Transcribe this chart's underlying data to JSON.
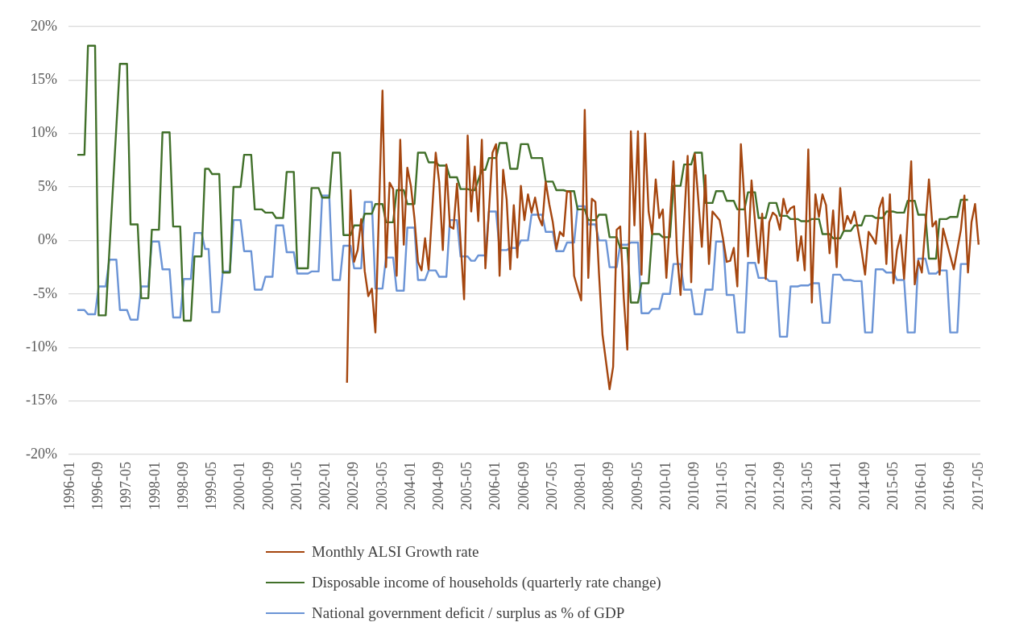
{
  "chart_data": {
    "type": "line",
    "marker": "none",
    "grid": "y",
    "legend": "bottom",
    "ylim": [
      -20,
      20
    ],
    "yticks": [
      {
        "value": -20,
        "label": "-20%"
      },
      {
        "value": -15,
        "label": "-15%"
      },
      {
        "value": -10,
        "label": "-10%"
      },
      {
        "value": -5,
        "label": "-5%"
      },
      {
        "value": 0,
        "label": "0%"
      },
      {
        "value": 5,
        "label": "5%"
      },
      {
        "value": 10,
        "label": "10%"
      },
      {
        "value": 15,
        "label": "15%"
      },
      {
        "value": 20,
        "label": "20%"
      }
    ],
    "xlim": [
      "1996-01",
      "2017-05"
    ],
    "xticks": [
      "1996-01",
      "1996-09",
      "1997-05",
      "1998-01",
      "1998-09",
      "1999-05",
      "2000-01",
      "2000-09",
      "2001-05",
      "2002-01",
      "2002-09",
      "2003-05",
      "2004-01",
      "2004-09",
      "2005-05",
      "2006-01",
      "2006-09",
      "2007-05",
      "2008-01",
      "2008-09",
      "2009-05",
      "2010-01",
      "2010-09",
      "2011-05",
      "2012-01",
      "2012-09",
      "2013-05",
      "2014-01",
      "2014-09",
      "2015-05",
      "2016-01",
      "2016-09",
      "2017-05"
    ],
    "series": [
      {
        "name": "Monthly ALSI Growth rate",
        "color": "#a5460f",
        "x": [
          "2002-07",
          "2002-08",
          "2002-09",
          "2002-10",
          "2002-11",
          "2002-12",
          "2003-01",
          "2003-02",
          "2003-03",
          "2003-05",
          "2003-06",
          "2003-07",
          "2003-08",
          "2003-09",
          "2003-10",
          "2003-11",
          "2003-12",
          "2004-01",
          "2004-02",
          "2004-03",
          "2004-04",
          "2004-05",
          "2004-06",
          "2004-08",
          "2004-09",
          "2004-10",
          "2004-11",
          "2004-12",
          "2005-01",
          "2005-02",
          "2005-04",
          "2005-05",
          "2005-06",
          "2005-07",
          "2005-08",
          "2005-09",
          "2005-10",
          "2005-12",
          "2006-01",
          "2006-02",
          "2006-03",
          "2006-04",
          "2006-05",
          "2006-06",
          "2006-07",
          "2006-08",
          "2006-09",
          "2006-10",
          "2006-11",
          "2006-12",
          "2007-01",
          "2007-02",
          "2007-03",
          "2007-04",
          "2007-05",
          "2007-06",
          "2007-07",
          "2007-08",
          "2007-09",
          "2007-10",
          "2007-11",
          "2007-12",
          "2008-01",
          "2008-02",
          "2008-03",
          "2008-04",
          "2008-05",
          "2008-06",
          "2008-07",
          "2008-09",
          "2008-10",
          "2008-11",
          "2008-12",
          "2009-01",
          "2009-02",
          "2009-03",
          "2009-04",
          "2009-05",
          "2009-06",
          "2009-07",
          "2009-08",
          "2009-09",
          "2009-10",
          "2009-11",
          "2009-12",
          "2010-01",
          "2010-03",
          "2010-04",
          "2010-05",
          "2010-06",
          "2010-07",
          "2010-08",
          "2010-09",
          "2010-10",
          "2010-11",
          "2010-12",
          "2011-01",
          "2011-02",
          "2011-04",
          "2011-05",
          "2011-06",
          "2011-07",
          "2011-08",
          "2011-09",
          "2011-10",
          "2011-11",
          "2011-12",
          "2012-01",
          "2012-02",
          "2012-03",
          "2012-04",
          "2012-05",
          "2012-06",
          "2012-07",
          "2012-08",
          "2012-09",
          "2012-10",
          "2012-11",
          "2012-12",
          "2013-01",
          "2013-02",
          "2013-03",
          "2013-04",
          "2013-05",
          "2013-06",
          "2013-07",
          "2013-08",
          "2013-09",
          "2013-10",
          "2013-11",
          "2013-12",
          "2014-01",
          "2014-02",
          "2014-03",
          "2014-04",
          "2014-05",
          "2014-06",
          "2014-07",
          "2014-08",
          "2014-09",
          "2014-10",
          "2014-11",
          "2014-12",
          "2015-01",
          "2015-02",
          "2015-03",
          "2015-04",
          "2015-05",
          "2015-06",
          "2015-07",
          "2015-08",
          "2015-10",
          "2015-11",
          "2015-12",
          "2016-01",
          "2016-03",
          "2016-04",
          "2016-05",
          "2016-06",
          "2016-07",
          "2016-10",
          "2016-12",
          "2017-01",
          "2017-02",
          "2017-03",
          "2017-04",
          "2017-05"
        ],
        "values": [
          -13.3,
          4.7,
          -2.0,
          -0.9,
          2.0,
          -2.9,
          -5.2,
          -4.5,
          -8.6,
          14.0,
          -2.5,
          5.4,
          4.8,
          -3.3,
          9.4,
          -0.4,
          6.8,
          5.1,
          2.1,
          -2.0,
          -2.8,
          0.2,
          -2.7,
          8.2,
          5.4,
          -0.9,
          7.1,
          1.3,
          1.1,
          5.3,
          -5.5,
          9.8,
          2.7,
          6.9,
          1.8,
          9.4,
          -2.6,
          8.2,
          9.0,
          -3.3,
          6.6,
          3.8,
          -2.7,
          3.3,
          -1.6,
          5.1,
          1.9,
          4.3,
          2.6,
          4.0,
          2.2,
          1.4,
          5.5,
          3.4,
          1.7,
          -0.8,
          0.8,
          0.4,
          4.6,
          4.5,
          -3.3,
          -4.5,
          -5.6,
          12.2,
          -3.5,
          3.9,
          3.6,
          -3.0,
          -8.8,
          -13.9,
          -11.8,
          1.0,
          1.3,
          -5.4,
          -10.2,
          10.2,
          1.4,
          10.2,
          -3.2,
          10.0,
          2.7,
          0.6,
          5.7,
          2.1,
          2.9,
          -3.5,
          7.4,
          -1.2,
          -5.1,
          1.7,
          7.9,
          -3.9,
          8.1,
          3.8,
          -0.6,
          6.1,
          -2.2,
          2.7,
          1.9,
          0.1,
          -2.0,
          -1.9,
          -0.7,
          -4.3,
          9.0,
          3.8,
          -1.5,
          5.6,
          1.7,
          -2.1,
          2.5,
          -3.6,
          1.7,
          2.6,
          2.3,
          1.0,
          3.9,
          2.5,
          3.0,
          3.2,
          -1.9,
          0.4,
          -2.8,
          8.5,
          -5.8,
          4.3,
          2.2,
          4.3,
          3.3,
          -1.2,
          2.8,
          -2.5,
          4.9,
          1.0,
          2.3,
          1.6,
          2.7,
          1.0,
          -0.9,
          -3.2,
          0.8,
          0.3,
          -0.3,
          3.0,
          4.0,
          -2.2,
          4.3,
          -4.0,
          -0.9,
          0.5,
          -3.6,
          7.4,
          -4.1,
          -1.9,
          -3.0,
          5.7,
          1.3,
          1.8,
          -3.2,
          1.1,
          -2.7,
          1.0,
          4.2,
          -3.0,
          1.7,
          3.4,
          -0.4
        ]
      },
      {
        "name": "Disposable income of households (quarterly rate change)",
        "color": "#41702a",
        "x": [
          "1996-03",
          "1996-05",
          "1996-06",
          "1996-08",
          "1996-09",
          "1996-11",
          "1997-03",
          "1997-05",
          "1997-06",
          "1997-08",
          "1997-09",
          "1997-11",
          "1997-12",
          "1998-02",
          "1998-03",
          "1998-05",
          "1998-06",
          "1998-08",
          "1998-09",
          "1998-11",
          "1998-12",
          "1999-02",
          "1999-03",
          "1999-04",
          "1999-05",
          "1999-07",
          "1999-08",
          "1999-10",
          "1999-11",
          "2000-01",
          "2000-02",
          "2000-04",
          "2000-05",
          "2000-07",
          "2000-08",
          "2000-10",
          "2000-11",
          "2001-01",
          "2001-02",
          "2001-04",
          "2001-05",
          "2001-08",
          "2001-09",
          "2001-11",
          "2001-12",
          "2002-02",
          "2002-03",
          "2002-05",
          "2002-06",
          "2002-08",
          "2002-09",
          "2002-11",
          "2002-12",
          "2003-02",
          "2003-03",
          "2003-05",
          "2003-06",
          "2003-08",
          "2003-09",
          "2003-11",
          "2003-12",
          "2004-02",
          "2004-03",
          "2004-05",
          "2004-06",
          "2004-08",
          "2004-09",
          "2004-11",
          "2004-12",
          "2005-02",
          "2005-03",
          "2005-05",
          "2005-06",
          "2005-07",
          "2005-09",
          "2005-10",
          "2005-11",
          "2006-01",
          "2006-02",
          "2006-04",
          "2006-05",
          "2006-07",
          "2006-08",
          "2006-10",
          "2006-11",
          "2007-02",
          "2007-03",
          "2007-05",
          "2007-06",
          "2007-08",
          "2007-09",
          "2007-11",
          "2007-12",
          "2008-02",
          "2008-03",
          "2008-05",
          "2008-06",
          "2008-08",
          "2008-09",
          "2008-11",
          "2008-12",
          "2009-02",
          "2009-03",
          "2009-05",
          "2009-06",
          "2009-08",
          "2009-09",
          "2009-11",
          "2009-12",
          "2010-02",
          "2010-03",
          "2010-05",
          "2010-06",
          "2010-08",
          "2010-09",
          "2010-11",
          "2010-12",
          "2011-02",
          "2011-03",
          "2011-05",
          "2011-06",
          "2011-08",
          "2011-09",
          "2011-11",
          "2011-12",
          "2012-02",
          "2012-03",
          "2012-05",
          "2012-06",
          "2012-08",
          "2012-09",
          "2012-11",
          "2012-12",
          "2013-02",
          "2013-03",
          "2013-05",
          "2013-06",
          "2013-08",
          "2013-09",
          "2013-11",
          "2013-12",
          "2014-02",
          "2014-03",
          "2014-05",
          "2014-06",
          "2014-08",
          "2014-09",
          "2014-11",
          "2014-12",
          "2015-02",
          "2015-03",
          "2015-05",
          "2015-06",
          "2015-08",
          "2015-09",
          "2015-11",
          "2015-12",
          "2016-02",
          "2016-03",
          "2016-05",
          "2016-06",
          "2016-08",
          "2016-09",
          "2016-11",
          "2016-12",
          "2017-02"
        ],
        "values": [
          8.0,
          8.0,
          18.2,
          18.2,
          -7.0,
          -7.0,
          16.5,
          16.5,
          1.5,
          1.5,
          -5.4,
          -5.4,
          1.0,
          1.0,
          10.1,
          10.1,
          1.3,
          1.3,
          -7.5,
          -7.5,
          -1.5,
          -1.5,
          6.7,
          6.7,
          6.2,
          6.2,
          -3.0,
          -3.0,
          5.0,
          5.0,
          8.0,
          8.0,
          2.9,
          2.9,
          2.6,
          2.6,
          2.1,
          2.1,
          6.4,
          6.4,
          -2.6,
          -2.6,
          4.9,
          4.9,
          4.0,
          4.0,
          8.2,
          8.2,
          0.5,
          0.5,
          1.4,
          1.4,
          2.5,
          2.5,
          3.4,
          3.4,
          1.7,
          1.7,
          4.7,
          4.7,
          3.4,
          3.4,
          8.2,
          8.2,
          7.3,
          7.3,
          7.0,
          7.0,
          5.9,
          5.9,
          4.8,
          4.8,
          4.7,
          4.7,
          6.6,
          6.6,
          7.7,
          7.7,
          9.1,
          9.1,
          6.7,
          6.7,
          9.0,
          9.0,
          7.7,
          7.7,
          5.5,
          5.5,
          4.7,
          4.7,
          4.6,
          4.6,
          2.9,
          2.9,
          1.9,
          1.9,
          2.4,
          2.4,
          0.3,
          0.3,
          -0.7,
          -0.7,
          -5.8,
          -5.8,
          -4.0,
          -4.0,
          0.6,
          0.6,
          0.3,
          0.3,
          5.1,
          5.1,
          7.1,
          7.1,
          8.2,
          8.2,
          3.5,
          3.5,
          4.6,
          4.6,
          3.7,
          3.7,
          2.9,
          2.9,
          4.5,
          4.5,
          2.1,
          2.1,
          3.5,
          3.5,
          2.3,
          2.3,
          2.0,
          2.0,
          1.8,
          1.8,
          2.0,
          2.0,
          0.6,
          0.6,
          0.2,
          0.2,
          0.9,
          0.9,
          1.4,
          1.4,
          2.3,
          2.3,
          2.1,
          2.1,
          2.7,
          2.7,
          2.6,
          2.6,
          3.7,
          3.7,
          2.4,
          2.4,
          -1.7,
          -1.7,
          2.0,
          2.0,
          2.2,
          2.2,
          3.8,
          3.8
        ]
      },
      {
        "name": "National government deficit / surplus as % of GDP",
        "color": "#6b94d6",
        "x": [
          "1996-03",
          "1996-05",
          "1996-06",
          "1996-08",
          "1996-09",
          "1996-11",
          "1996-12",
          "1997-02",
          "1997-03",
          "1997-05",
          "1997-06",
          "1997-08",
          "1997-09",
          "1997-11",
          "1997-12",
          "1998-02",
          "1998-03",
          "1998-05",
          "1998-06",
          "1998-08",
          "1998-09",
          "1998-11",
          "1998-12",
          "1999-02",
          "1999-03",
          "1999-04",
          "1999-05",
          "1999-07",
          "1999-08",
          "1999-10",
          "1999-11",
          "2000-01",
          "2000-02",
          "2000-04",
          "2000-05",
          "2000-07",
          "2000-08",
          "2000-10",
          "2000-11",
          "2001-01",
          "2001-02",
          "2001-04",
          "2001-05",
          "2001-08",
          "2001-09",
          "2001-11",
          "2001-12",
          "2002-02",
          "2002-03",
          "2002-05",
          "2002-06",
          "2002-08",
          "2002-09",
          "2002-11",
          "2002-12",
          "2003-02",
          "2003-03",
          "2003-05",
          "2003-06",
          "2003-08",
          "2003-09",
          "2003-11",
          "2003-12",
          "2004-02",
          "2004-03",
          "2004-05",
          "2004-06",
          "2004-08",
          "2004-09",
          "2004-11",
          "2004-12",
          "2005-02",
          "2005-03",
          "2005-05",
          "2005-06",
          "2005-07",
          "2005-08",
          "2005-10",
          "2005-11",
          "2006-01",
          "2006-02",
          "2006-04",
          "2006-05",
          "2006-07",
          "2006-08",
          "2006-10",
          "2006-11",
          "2007-02",
          "2007-03",
          "2007-05",
          "2007-06",
          "2007-08",
          "2007-09",
          "2007-11",
          "2007-12",
          "2008-02",
          "2008-03",
          "2008-05",
          "2008-06",
          "2008-08",
          "2008-09",
          "2008-11",
          "2008-12",
          "2009-02",
          "2009-03",
          "2009-05",
          "2009-06",
          "2009-08",
          "2009-09",
          "2009-11",
          "2009-12",
          "2010-02",
          "2010-03",
          "2010-05",
          "2010-06",
          "2010-08",
          "2010-09",
          "2010-11",
          "2010-12",
          "2011-02",
          "2011-03",
          "2011-05",
          "2011-06",
          "2011-08",
          "2011-09",
          "2011-11",
          "2011-12",
          "2012-02",
          "2012-03",
          "2012-05",
          "2012-06",
          "2012-08",
          "2012-09",
          "2012-11",
          "2012-12",
          "2013-02",
          "2013-03",
          "2013-05",
          "2013-06",
          "2013-08",
          "2013-09",
          "2013-11",
          "2013-12",
          "2014-02",
          "2014-03",
          "2014-05",
          "2014-06",
          "2014-08",
          "2014-09",
          "2014-11",
          "2014-12",
          "2015-02",
          "2015-03",
          "2015-05",
          "2015-06",
          "2015-08",
          "2015-09",
          "2015-11",
          "2015-12",
          "2016-02",
          "2016-03",
          "2016-05",
          "2016-06",
          "2016-08",
          "2016-09",
          "2016-11",
          "2016-12",
          "2017-02"
        ],
        "values": [
          -6.5,
          -6.5,
          -6.9,
          -6.9,
          -4.3,
          -4.3,
          -1.8,
          -1.8,
          -6.5,
          -6.5,
          -7.4,
          -7.4,
          -4.3,
          -4.3,
          -0.1,
          -0.1,
          -2.7,
          -2.7,
          -7.2,
          -7.2,
          -3.6,
          -3.6,
          0.7,
          0.7,
          -0.8,
          -0.8,
          -6.7,
          -6.7,
          -2.9,
          -2.9,
          1.9,
          1.9,
          -1.0,
          -1.0,
          -4.6,
          -4.6,
          -3.4,
          -3.4,
          1.4,
          1.4,
          -1.1,
          -1.1,
          -3.1,
          -3.1,
          -2.9,
          -2.9,
          4.2,
          4.2,
          -3.7,
          -3.7,
          -0.5,
          -0.5,
          -2.6,
          -2.6,
          3.6,
          3.6,
          -4.5,
          -4.5,
          -1.6,
          -1.6,
          -4.7,
          -4.7,
          1.2,
          1.2,
          -3.7,
          -3.7,
          -2.8,
          -2.8,
          -3.4,
          -3.4,
          1.9,
          1.9,
          -1.5,
          -1.5,
          -1.9,
          -1.9,
          -1.4,
          -1.4,
          2.7,
          2.7,
          -0.9,
          -0.9,
          -0.7,
          -0.7,
          0.0,
          0.0,
          2.4,
          2.4,
          0.8,
          0.8,
          -1.0,
          -1.0,
          -0.2,
          -0.2,
          3.2,
          3.2,
          1.5,
          1.5,
          0.0,
          0.0,
          -2.5,
          -2.5,
          -0.4,
          -0.4,
          -0.2,
          -0.2,
          -6.8,
          -6.8,
          -6.4,
          -6.4,
          -5.0,
          -5.0,
          -2.2,
          -2.2,
          -4.6,
          -4.6,
          -6.9,
          -6.9,
          -4.6,
          -4.6,
          -0.1,
          -0.1,
          -5.1,
          -5.1,
          -8.6,
          -8.6,
          -2.1,
          -2.1,
          -3.5,
          -3.5,
          -3.8,
          -3.8,
          -9.0,
          -9.0,
          -4.3,
          -4.3,
          -4.2,
          -4.2,
          -4.0,
          -4.0,
          -7.7,
          -7.7,
          -3.2,
          -3.2,
          -3.7,
          -3.7,
          -3.8,
          -3.8,
          -8.6,
          -8.6,
          -2.7,
          -2.7,
          -3.0,
          -3.0,
          -3.7,
          -3.7,
          -8.6,
          -8.6,
          -1.7,
          -1.7,
          -3.1,
          -3.1,
          -2.8,
          -2.8,
          -8.6,
          -8.6,
          -2.2,
          -2.2
        ]
      }
    ]
  }
}
